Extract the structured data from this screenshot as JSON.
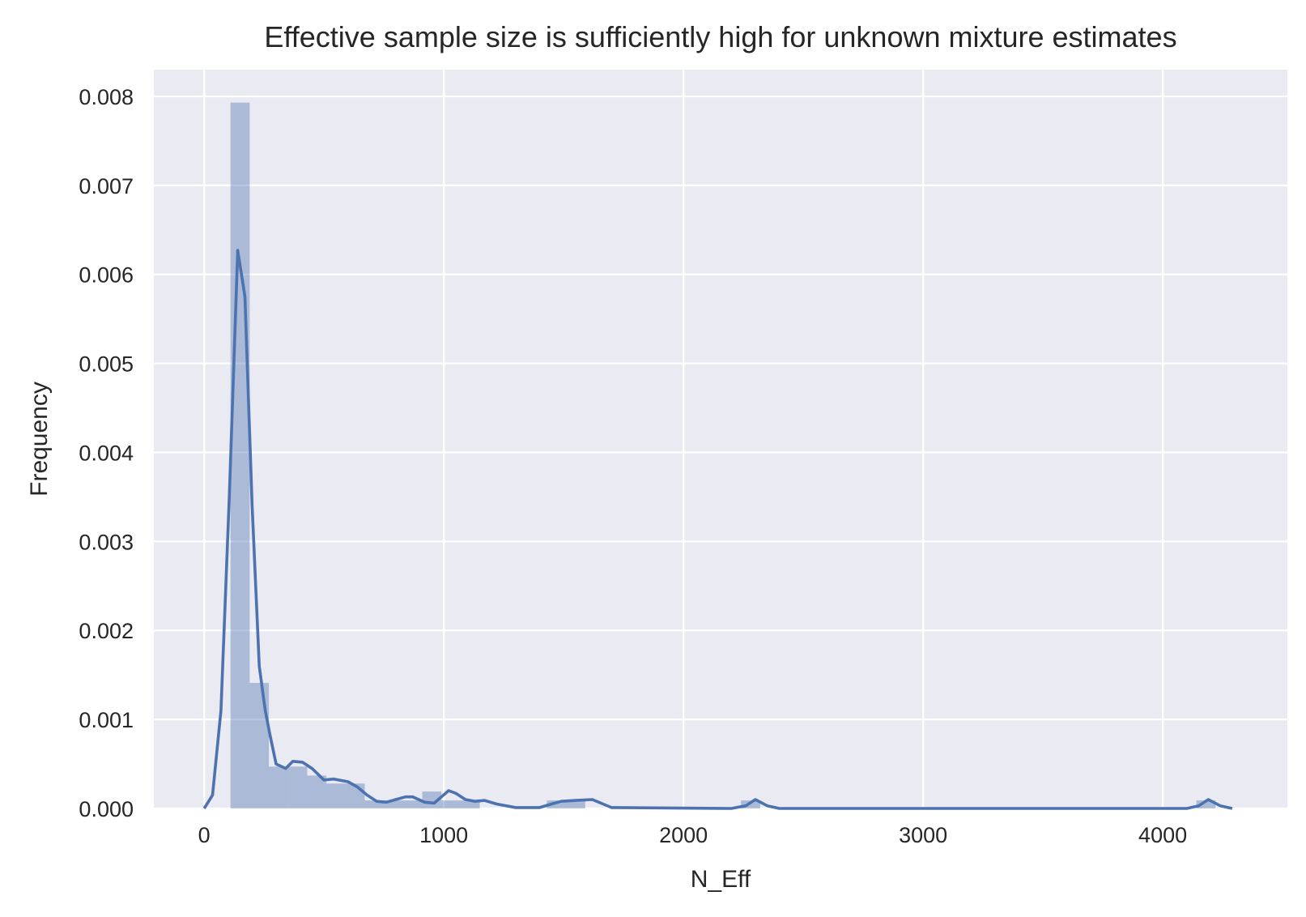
{
  "chart_data": {
    "type": "bar",
    "title": "Effective sample size is sufficiently high for unknown mixture estimates",
    "xlabel": "N_Eff",
    "ylabel": "Frequency",
    "xlim": [
      -210,
      4520
    ],
    "ylim": [
      0,
      0.0083
    ],
    "grid": true,
    "background": "#EAEAF2",
    "bar_color": "#4C72B0",
    "bar_opacity": 0.4,
    "line_color": "#4C72B0",
    "x_ticks": [
      0,
      1000,
      2000,
      3000,
      4000
    ],
    "x_tick_labels": [
      "0",
      "1000",
      "2000",
      "3000",
      "4000"
    ],
    "y_ticks": [
      0,
      0.001,
      0.002,
      0.003,
      0.004,
      0.005,
      0.006,
      0.007,
      0.008
    ],
    "y_tick_labels": [
      "0.000",
      "0.001",
      "0.002",
      "0.003",
      "0.004",
      "0.005",
      "0.006",
      "0.007",
      "0.008"
    ],
    "histogram": {
      "bins": [
        {
          "x0": 110,
          "x1": 190,
          "density": 0.00793
        },
        {
          "x0": 190,
          "x1": 270,
          "density": 0.00141
        },
        {
          "x0": 270,
          "x1": 350,
          "density": 0.00047
        },
        {
          "x0": 350,
          "x1": 430,
          "density": 0.00047
        },
        {
          "x0": 430,
          "x1": 510,
          "density": 0.00037
        },
        {
          "x0": 510,
          "x1": 590,
          "density": 0.00028
        },
        {
          "x0": 590,
          "x1": 670,
          "density": 0.00028
        },
        {
          "x0": 670,
          "x1": 750,
          "density": 9e-05
        },
        {
          "x0": 750,
          "x1": 830,
          "density": 9e-05
        },
        {
          "x0": 830,
          "x1": 910,
          "density": 9e-05
        },
        {
          "x0": 910,
          "x1": 990,
          "density": 0.00019
        },
        {
          "x0": 990,
          "x1": 1070,
          "density": 9e-05
        },
        {
          "x0": 1070,
          "x1": 1150,
          "density": 9e-05
        },
        {
          "x0": 1430,
          "x1": 1510,
          "density": 9e-05
        },
        {
          "x0": 1510,
          "x1": 1590,
          "density": 9e-05
        },
        {
          "x0": 2240,
          "x1": 2320,
          "density": 9e-05
        },
        {
          "x0": 4140,
          "x1": 4220,
          "density": 9e-05
        }
      ]
    },
    "kde": {
      "x": [
        0,
        35,
        70,
        105,
        140,
        170,
        200,
        230,
        255,
        275,
        300,
        340,
        370,
        410,
        450,
        500,
        540,
        600,
        640,
        680,
        720,
        760,
        800,
        840,
        870,
        920,
        960,
        990,
        1020,
        1050,
        1090,
        1130,
        1170,
        1220,
        1300,
        1400,
        1450,
        1490,
        1550,
        1620,
        1700,
        2200,
        2260,
        2300,
        2350,
        2400,
        4100,
        4150,
        4190,
        4240,
        4290
      ],
      "y": [
        0,
        0.00015,
        0.0011,
        0.0035,
        0.00627,
        0.00575,
        0.0034,
        0.0016,
        0.0011,
        0.00082,
        0.0005,
        0.00045,
        0.00053,
        0.00052,
        0.00045,
        0.00032,
        0.00033,
        0.0003,
        0.00024,
        0.00015,
        8e-05,
        7e-05,
        0.0001,
        0.00013,
        0.00013,
        7e-05,
        6e-05,
        0.00013,
        0.0002,
        0.00017,
        0.0001,
        8e-05,
        9e-05,
        5e-05,
        1e-05,
        1e-05,
        5e-05,
        8e-05,
        9e-05,
        0.0001,
        1e-05,
        0,
        3e-05,
        0.0001,
        3e-05,
        0,
        0,
        3e-05,
        0.0001,
        3e-05,
        0
      ]
    }
  }
}
